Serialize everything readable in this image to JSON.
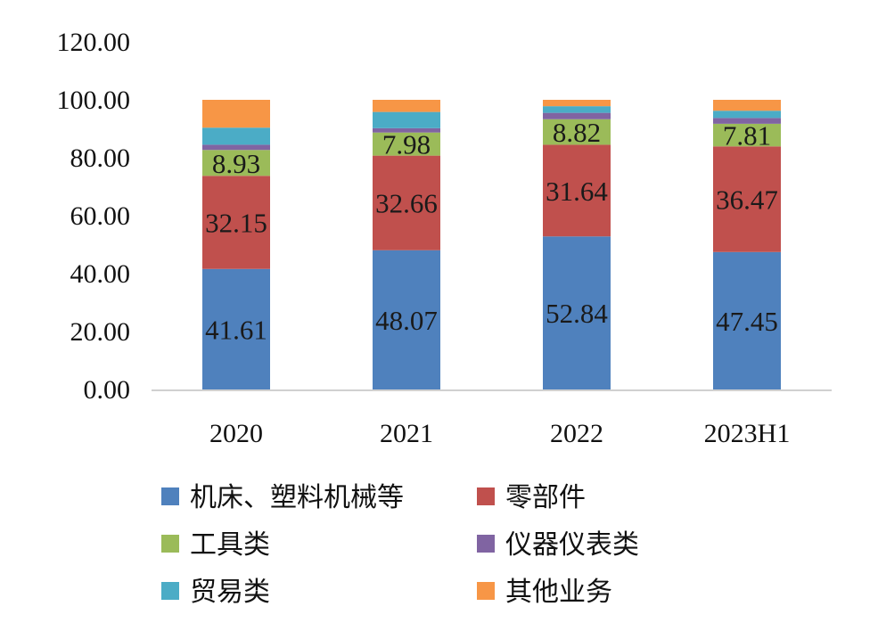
{
  "chart_data": {
    "type": "bar",
    "stacked": true,
    "categories": [
      "2020",
      "2021",
      "2022",
      "2023H1"
    ],
    "ylim": [
      0,
      120
    ],
    "yticks": [
      "0.00",
      "20.00",
      "40.00",
      "60.00",
      "80.00",
      "100.00",
      "120.00"
    ],
    "grid": false,
    "legend_position": "bottom",
    "series": [
      {
        "name": "机床、塑料机械等",
        "color": "#4F81BD",
        "values": [
          41.61,
          48.07,
          52.84,
          47.45
        ],
        "labels": [
          "41.61",
          "48.07",
          "52.84",
          "47.45"
        ]
      },
      {
        "name": "零部件",
        "legend_label": "零部件",
        "color": "#C0504D",
        "values": [
          32.15,
          32.66,
          31.64,
          36.47
        ],
        "labels": [
          "32.15",
          "32.66",
          "31.64",
          "36.47"
        ]
      },
      {
        "name": "工具类",
        "color": "#9BBB59",
        "values": [
          8.93,
          7.98,
          8.82,
          7.81
        ],
        "labels": [
          "8.93",
          "7.98",
          "8.82",
          "7.81"
        ]
      },
      {
        "name": "仪器仪表类",
        "color": "#8064A2",
        "values": [
          1.8,
          1.5,
          2.2,
          2.0
        ],
        "labels": [
          "",
          "",
          "",
          ""
        ]
      },
      {
        "name": "贸易类",
        "legend_label": "贸易类",
        "color": "#4BACC6",
        "values": [
          5.9,
          5.6,
          2.3,
          2.5
        ],
        "labels": [
          "",
          "",
          "",
          ""
        ]
      },
      {
        "name": "其他业务",
        "color": "#F79646",
        "values": [
          9.61,
          4.19,
          2.2,
          3.77
        ],
        "labels": [
          "",
          "",
          "",
          ""
        ]
      }
    ]
  }
}
